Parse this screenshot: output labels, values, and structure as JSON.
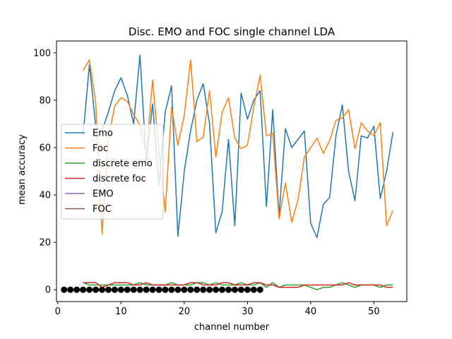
{
  "chart_data": {
    "type": "line",
    "title": "Disc. EMO and FOC single channel LDA",
    "xlabel": "channel number",
    "ylabel": "mean accuracy",
    "xlim": [
      -0.2,
      55.2
    ],
    "ylim": [
      -5,
      105
    ],
    "xticks": [
      0,
      10,
      20,
      30,
      40,
      50
    ],
    "yticks": [
      0,
      20,
      40,
      60,
      80,
      100
    ],
    "grid": false,
    "legend_position": "center-left",
    "series": [
      {
        "name": "Emo",
        "color": "#1f77b4",
        "x": [
          4,
          5,
          6,
          7,
          8,
          9,
          10,
          11,
          12,
          13,
          14,
          15,
          16,
          17,
          18,
          19,
          20,
          21,
          22,
          23,
          24,
          25,
          26,
          27,
          28,
          29,
          30,
          31,
          32,
          33,
          34,
          35,
          36,
          37,
          38,
          39,
          40,
          41,
          42,
          43,
          44,
          45,
          46,
          47,
          48,
          49,
          50,
          51,
          52,
          53
        ],
        "y": [
          65,
          95,
          69,
          67,
          75,
          84,
          89.5,
          82,
          70,
          99,
          54,
          78.5,
          44,
          75,
          86,
          22.5,
          50,
          67,
          80,
          87,
          70,
          24,
          33,
          63.5,
          27,
          83,
          72,
          80,
          84,
          35,
          76,
          31,
          68,
          60,
          63.5,
          67,
          28,
          22,
          36,
          39,
          65,
          78,
          50,
          37.5,
          65,
          64,
          69,
          38.5,
          50,
          66.5
        ]
      },
      {
        "name": "Foc",
        "color": "#ff7f0e",
        "x": [
          4,
          5,
          6,
          7,
          8,
          9,
          10,
          11,
          12,
          13,
          14,
          15,
          16,
          17,
          18,
          19,
          20,
          21,
          22,
          23,
          24,
          25,
          26,
          27,
          28,
          29,
          30,
          31,
          32,
          33,
          34,
          35,
          36,
          37,
          38,
          39,
          40,
          41,
          42,
          43,
          44,
          45,
          46,
          47,
          48,
          49,
          50,
          51,
          52,
          53
        ],
        "y": [
          92.5,
          97,
          79,
          23.5,
          64,
          77.5,
          81,
          79.5,
          74,
          69.5,
          57,
          88.5,
          58,
          33,
          77,
          61,
          73.5,
          97,
          62.5,
          64.5,
          84,
          56,
          75,
          81,
          64,
          59.5,
          61,
          77,
          90.5,
          65,
          66,
          30,
          45,
          28.5,
          38,
          56,
          60,
          64,
          57.5,
          63,
          71.5,
          72.5,
          76,
          59.5,
          70.5,
          67,
          65,
          70.5,
          27,
          33.5
        ]
      },
      {
        "name": "discrete emo",
        "color": "#2ca02c",
        "x": [
          4,
          5,
          6,
          7,
          8,
          9,
          10,
          11,
          12,
          13,
          14,
          15,
          16,
          17,
          18,
          19,
          20,
          21,
          22,
          23,
          24,
          25,
          26,
          27,
          28,
          29,
          30,
          31,
          32,
          33,
          34,
          35,
          36,
          37,
          38,
          39,
          40,
          41,
          42,
          43,
          44,
          45,
          46,
          47,
          48,
          49,
          50,
          51,
          52,
          53
        ],
        "y": [
          3,
          2,
          2,
          2,
          2,
          2,
          2,
          2,
          2,
          3,
          2,
          2,
          2,
          2,
          3,
          2,
          2,
          2,
          3,
          3,
          2,
          3,
          2,
          2,
          2,
          3,
          2,
          2,
          3,
          1,
          3,
          1,
          2,
          2,
          2,
          2,
          1,
          0,
          1,
          1,
          2,
          3,
          2,
          1,
          2,
          2,
          2,
          1,
          2,
          2
        ]
      },
      {
        "name": "discrete foc",
        "color": "#d62728",
        "x": [
          4,
          5,
          6,
          7,
          8,
          9,
          10,
          11,
          12,
          13,
          14,
          15,
          16,
          17,
          18,
          19,
          20,
          21,
          22,
          23,
          24,
          25,
          26,
          27,
          28,
          29,
          30,
          31,
          32,
          33,
          34,
          35,
          36,
          37,
          38,
          39,
          40,
          41,
          42,
          43,
          44,
          45,
          46,
          47,
          48,
          49,
          50,
          51,
          52,
          53
        ],
        "y": [
          3,
          3,
          3,
          1,
          2,
          3,
          3,
          3,
          2,
          2,
          3,
          2,
          2,
          2,
          2,
          2,
          2,
          3,
          3,
          2,
          2,
          2,
          3,
          3,
          2,
          2,
          2,
          3,
          3,
          2,
          2,
          1,
          1,
          1,
          1,
          2,
          2,
          2,
          2,
          2,
          2,
          2,
          3,
          2,
          2,
          2,
          2,
          2,
          1,
          1
        ]
      },
      {
        "name": "EMO",
        "color": "#9467bd",
        "x": [
          1,
          2,
          3,
          4,
          5,
          6,
          7,
          8,
          9,
          10,
          11,
          12,
          13,
          14,
          15,
          16,
          17,
          18,
          19,
          20,
          21,
          22,
          23,
          24,
          25,
          26,
          27,
          28,
          29,
          30,
          31,
          32
        ],
        "y": [
          0,
          0,
          0,
          0,
          0,
          0,
          0,
          0,
          0,
          0,
          0,
          0,
          0,
          0,
          0,
          0,
          0,
          0,
          0,
          0,
          0,
          0,
          0,
          0,
          0,
          0,
          0,
          0,
          0,
          0,
          0,
          0
        ]
      },
      {
        "name": "FOC",
        "color": "#8c564b",
        "x": [
          1,
          2,
          3,
          4,
          5,
          6,
          7,
          8,
          9,
          10,
          11,
          12,
          13,
          14,
          15,
          16,
          17,
          18,
          19,
          20,
          21,
          22,
          23,
          24,
          25,
          26,
          27,
          28,
          29,
          30,
          31,
          32
        ],
        "y": [
          0,
          0,
          0,
          0,
          0,
          0,
          0,
          0,
          0,
          0,
          0,
          0,
          0,
          0,
          0,
          0,
          0,
          0,
          0,
          0,
          0,
          0,
          0,
          0,
          0,
          0,
          0,
          0,
          0,
          0,
          0,
          0
        ]
      }
    ],
    "markers": {
      "color": "#000000",
      "x": [
        1,
        2,
        3,
        4,
        5,
        6,
        7,
        8,
        9,
        10,
        11,
        12,
        13,
        14,
        15,
        16,
        17,
        18,
        19,
        20,
        21,
        22,
        23,
        24,
        25,
        26,
        27,
        28,
        29,
        30,
        31,
        32
      ],
      "y": [
        0,
        0,
        0,
        0,
        0,
        0,
        0,
        0,
        0,
        0,
        0,
        0,
        0,
        0,
        0,
        0,
        0,
        0,
        0,
        0,
        0,
        0,
        0,
        0,
        0,
        0,
        0,
        0,
        0,
        0,
        0,
        0
      ]
    }
  }
}
